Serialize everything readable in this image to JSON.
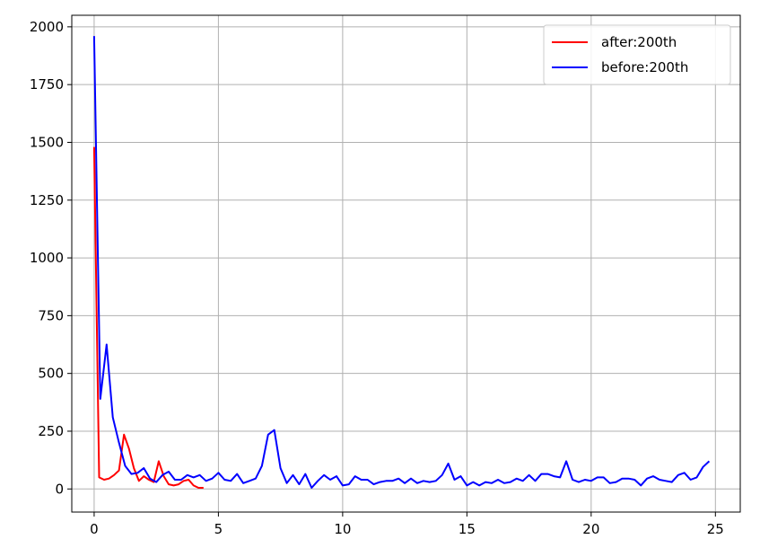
{
  "chart_data": {
    "type": "line",
    "title": "",
    "xlabel": "",
    "ylabel": "",
    "xlim": [
      -0.9,
      26.0
    ],
    "ylim": [
      -100,
      2050
    ],
    "grid": true,
    "legend": {
      "placement": "top-right"
    },
    "x_ticks": [
      0,
      5,
      10,
      15,
      20,
      25
    ],
    "y_ticks": [
      0,
      250,
      500,
      750,
      1000,
      1250,
      1500,
      1750,
      2000
    ],
    "series": [
      {
        "name": "after:200th",
        "color": "#ff0000",
        "x": [
          0.0,
          0.2,
          0.4,
          0.6,
          0.8,
          1.0,
          1.2,
          1.4,
          1.6,
          1.8,
          2.0,
          2.2,
          2.4,
          2.6,
          2.8,
          3.0,
          3.2,
          3.4,
          3.6,
          3.8,
          4.0,
          4.2,
          4.4
        ],
        "y": [
          1480,
          50,
          40,
          45,
          60,
          80,
          235,
          175,
          90,
          35,
          55,
          40,
          30,
          120,
          55,
          20,
          15,
          20,
          35,
          40,
          15,
          5,
          5
        ]
      },
      {
        "name": "before:200th",
        "color": "#0000ff",
        "x": [
          0.0,
          0.25,
          0.5,
          0.75,
          1.0,
          1.25,
          1.5,
          1.75,
          2.0,
          2.25,
          2.5,
          2.75,
          3.0,
          3.25,
          3.5,
          3.75,
          4.0,
          4.25,
          4.5,
          4.75,
          5.0,
          5.25,
          5.5,
          5.75,
          6.0,
          6.25,
          6.5,
          6.75,
          7.0,
          7.25,
          7.5,
          7.75,
          8.0,
          8.25,
          8.5,
          8.75,
          9.0,
          9.25,
          9.5,
          9.75,
          10.0,
          10.25,
          10.5,
          10.75,
          11.0,
          11.25,
          11.5,
          11.75,
          12.0,
          12.25,
          12.5,
          12.75,
          13.0,
          13.25,
          13.5,
          13.75,
          14.0,
          14.25,
          14.5,
          14.75,
          15.0,
          15.25,
          15.5,
          15.75,
          16.0,
          16.25,
          16.5,
          16.75,
          17.0,
          17.25,
          17.5,
          17.75,
          18.0,
          18.25,
          18.5,
          18.75,
          19.0,
          19.25,
          19.5,
          19.75,
          20.0,
          20.25,
          20.5,
          20.75,
          21.0,
          21.25,
          21.5,
          21.75,
          22.0,
          22.25,
          22.5,
          22.75,
          23.0,
          23.25,
          23.5,
          23.75,
          24.0,
          24.25,
          24.5,
          24.75
        ],
        "y": [
          1960,
          390,
          625,
          310,
          200,
          100,
          65,
          70,
          90,
          45,
          30,
          60,
          75,
          40,
          40,
          60,
          50,
          60,
          35,
          45,
          70,
          40,
          35,
          65,
          25,
          35,
          45,
          100,
          235,
          255,
          90,
          25,
          60,
          20,
          65,
          5,
          35,
          60,
          40,
          55,
          15,
          20,
          55,
          40,
          40,
          20,
          30,
          35,
          35,
          45,
          25,
          45,
          25,
          35,
          30,
          35,
          60,
          110,
          40,
          55,
          15,
          30,
          15,
          30,
          25,
          40,
          25,
          30,
          45,
          35,
          60,
          35,
          65,
          65,
          55,
          50,
          120,
          40,
          30,
          40,
          35,
          50,
          50,
          25,
          30,
          45,
          45,
          40,
          15,
          45,
          55,
          40,
          35,
          30,
          60,
          70,
          40,
          50,
          95,
          120
        ]
      }
    ]
  }
}
